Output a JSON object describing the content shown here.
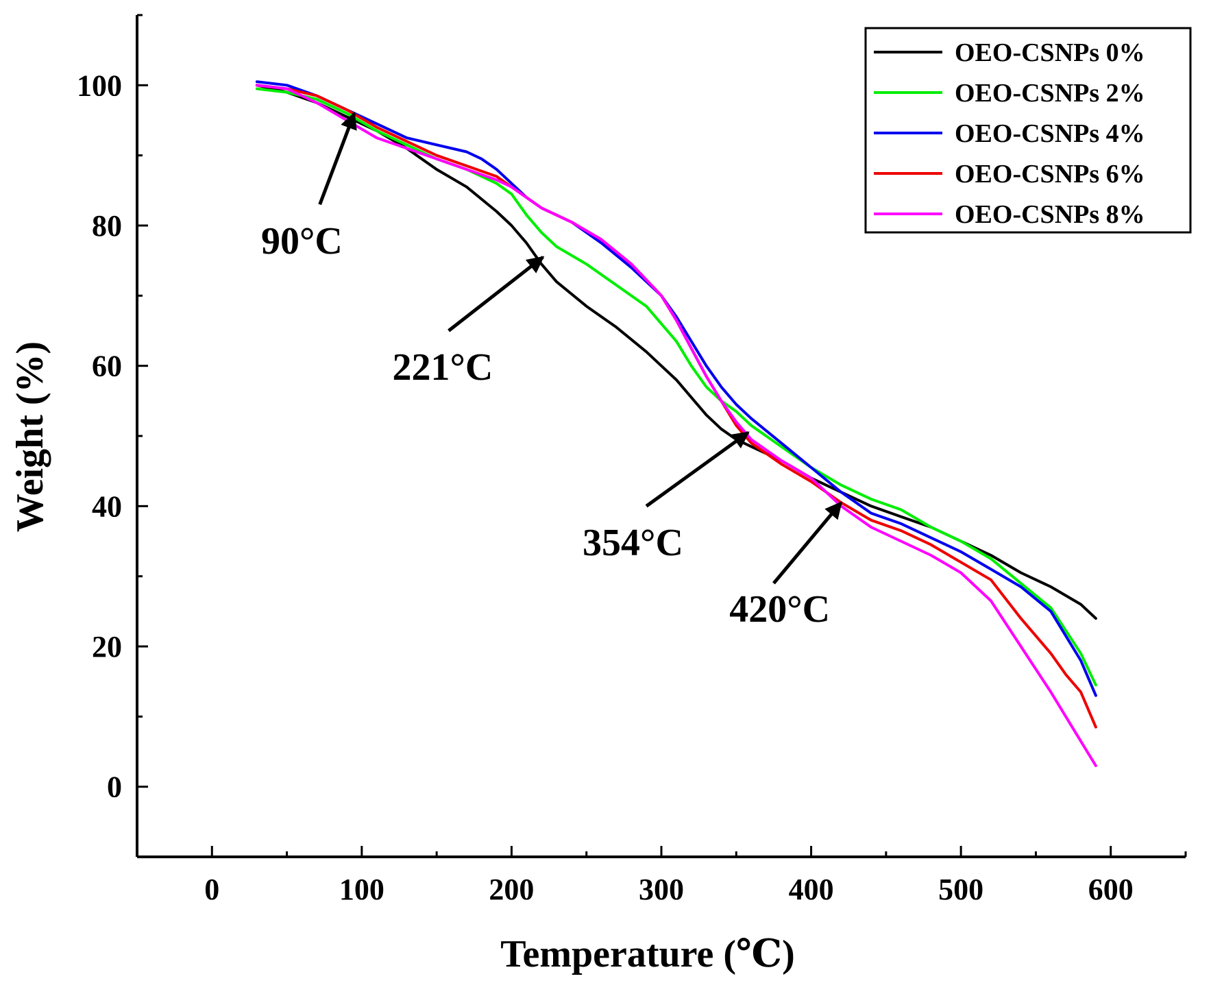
{
  "chart_data": {
    "type": "line",
    "title": "",
    "xlabel": "Temperature (℃)",
    "ylabel": "Weight (%)",
    "xlim": [
      -50,
      650
    ],
    "ylim": [
      -10,
      110
    ],
    "x_ticks": [
      0,
      100,
      200,
      300,
      400,
      500,
      600
    ],
    "y_ticks": [
      0,
      20,
      40,
      60,
      80,
      100
    ],
    "grid": false,
    "legend_position": "top-right",
    "series": [
      {
        "name": "OEO-CSNPs 0%",
        "color": "#000000",
        "x": [
          30,
          50,
          70,
          90,
          110,
          130,
          150,
          170,
          190,
          200,
          210,
          220,
          230,
          250,
          270,
          290,
          300,
          310,
          320,
          330,
          340,
          350,
          360,
          380,
          400,
          420,
          440,
          460,
          480,
          500,
          520,
          540,
          560,
          580,
          590
        ],
        "y": [
          100,
          99,
          97.5,
          95.5,
          93.5,
          91,
          88,
          85.5,
          82,
          80,
          77.5,
          74.5,
          72,
          68.5,
          65.5,
          62,
          60,
          58,
          55.5,
          53,
          51,
          49.5,
          48.5,
          46.5,
          44,
          42,
          40,
          38.5,
          37,
          35,
          33,
          30.5,
          28.5,
          26,
          24
        ]
      },
      {
        "name": "OEO-CSNPs 2%",
        "color": "#00ee00",
        "x": [
          30,
          50,
          70,
          90,
          110,
          130,
          150,
          170,
          190,
          200,
          210,
          220,
          230,
          250,
          270,
          290,
          300,
          310,
          320,
          330,
          340,
          350,
          360,
          380,
          400,
          420,
          440,
          460,
          480,
          500,
          520,
          540,
          560,
          580,
          590
        ],
        "y": [
          99.5,
          99,
          98,
          96,
          93.5,
          91.5,
          89.5,
          88,
          86,
          84.5,
          81.5,
          79,
          77,
          74.5,
          71.5,
          68.5,
          66,
          63.5,
          60,
          57,
          55,
          53.5,
          51.5,
          48.5,
          45.5,
          43,
          41,
          39.5,
          37,
          35,
          32.5,
          29,
          25.5,
          19,
          14.5
        ]
      },
      {
        "name": "OEO-CSNPs 4%",
        "color": "#0000ee",
        "x": [
          30,
          50,
          70,
          90,
          110,
          130,
          150,
          170,
          180,
          190,
          200,
          210,
          220,
          240,
          260,
          280,
          300,
          310,
          320,
          330,
          340,
          350,
          360,
          380,
          400,
          420,
          440,
          460,
          480,
          500,
          520,
          540,
          560,
          580,
          590
        ],
        "y": [
          100.5,
          100,
          98.5,
          96.5,
          94.5,
          92.5,
          91.5,
          90.5,
          89.5,
          88,
          86,
          84,
          82.5,
          80.5,
          77.5,
          74,
          70,
          67,
          63.5,
          60,
          57,
          54.5,
          52.5,
          49,
          45.5,
          42,
          39,
          37.5,
          35.5,
          33.5,
          31,
          28.5,
          25,
          18,
          13
        ]
      },
      {
        "name": "OEO-CSNPs 6%",
        "color": "#ee0000",
        "x": [
          30,
          50,
          70,
          90,
          110,
          130,
          150,
          170,
          190,
          200,
          210,
          220,
          240,
          260,
          280,
          300,
          310,
          320,
          330,
          340,
          350,
          360,
          380,
          400,
          420,
          440,
          460,
          480,
          500,
          520,
          540,
          560,
          570,
          580,
          590
        ],
        "y": [
          100,
          99.5,
          98.5,
          96.5,
          94,
          92,
          90,
          88.5,
          87,
          85.5,
          84,
          82.5,
          80.5,
          78,
          74.5,
          70,
          66.5,
          62.5,
          58.5,
          55,
          51.5,
          49,
          46,
          43.5,
          40.5,
          38,
          36.5,
          34.5,
          32,
          29.5,
          24,
          19,
          16,
          13.5,
          8.5
        ]
      },
      {
        "name": "OEO-CSNPs 8%",
        "color": "#ff00ff",
        "x": [
          30,
          50,
          70,
          90,
          110,
          130,
          150,
          170,
          190,
          200,
          210,
          220,
          240,
          260,
          280,
          300,
          310,
          320,
          330,
          340,
          350,
          360,
          380,
          400,
          420,
          440,
          460,
          480,
          500,
          520,
          540,
          560,
          570,
          580,
          590
        ],
        "y": [
          100,
          99.5,
          97.5,
          95,
          92.5,
          91,
          89.5,
          88,
          86.5,
          85.5,
          84,
          82.5,
          80.5,
          78,
          74.5,
          70,
          66.5,
          62.5,
          58.5,
          55,
          52,
          49.5,
          46.5,
          44,
          40,
          37,
          35,
          33,
          30.5,
          26.5,
          20,
          13.5,
          10,
          6.5,
          3
        ]
      }
    ],
    "annotations": [
      {
        "text": "90°C",
        "tip": [
          95,
          96
        ],
        "tail": [
          72,
          83
        ],
        "label_pos": [
          60,
          76
        ]
      },
      {
        "text": "221°C",
        "tip": [
          221,
          75.5
        ],
        "tail": [
          158,
          65
        ],
        "label_pos": [
          154,
          58
        ]
      },
      {
        "text": "354°C",
        "tip": [
          358,
          50.5
        ],
        "tail": [
          290,
          40
        ],
        "label_pos": [
          281,
          33
        ]
      },
      {
        "text": "420°C",
        "tip": [
          420,
          40.5
        ],
        "tail": [
          375,
          29
        ],
        "label_pos": [
          379,
          23.5
        ]
      }
    ]
  }
}
